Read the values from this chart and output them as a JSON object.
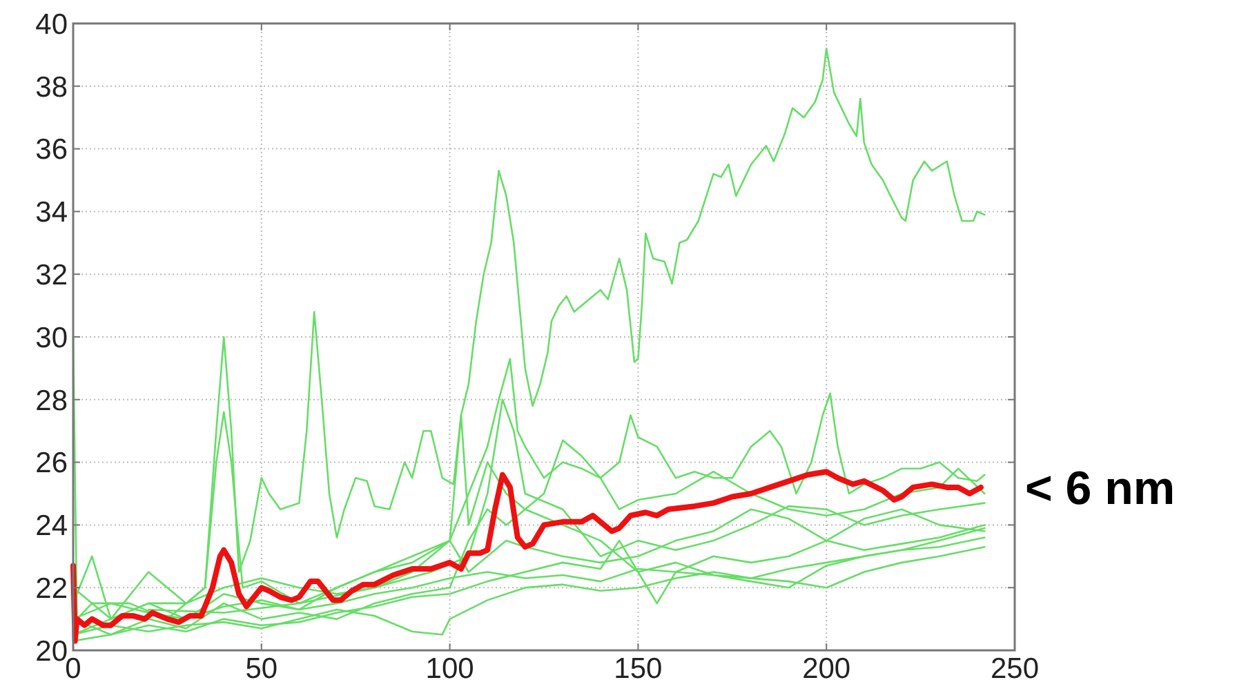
{
  "chart_data": {
    "type": "line",
    "xlim": [
      0,
      250
    ],
    "ylim": [
      20,
      40
    ],
    "xticks": [
      0,
      50,
      100,
      150,
      200,
      250
    ],
    "yticks": [
      20,
      22,
      24,
      26,
      28,
      30,
      32,
      34,
      36,
      38,
      40
    ],
    "grid": true,
    "annotations": [
      {
        "text": "< 6 nm",
        "x": 241,
        "y": 25.2
      }
    ],
    "series": [
      {
        "color": "#66dd66",
        "x": [
          0,
          10,
          20,
          30,
          35,
          38,
          40,
          42,
          44,
          47,
          50,
          52,
          55,
          60,
          62,
          64,
          66,
          68,
          70,
          72,
          75,
          78,
          80,
          84,
          88,
          90,
          93,
          95,
          98,
          101,
          103,
          105,
          107,
          109,
          111,
          113,
          115,
          117,
          120,
          122,
          124,
          126,
          127,
          129,
          131,
          133,
          137,
          140,
          142,
          145,
          147,
          149,
          150,
          151,
          152,
          154,
          157,
          159,
          161,
          163,
          166,
          170,
          172,
          174,
          176,
          180,
          184,
          186,
          189,
          191,
          194,
          197,
          199,
          200,
          201,
          202,
          204,
          206,
          208,
          209,
          210,
          212,
          215,
          217,
          220,
          221,
          223,
          226,
          228,
          232,
          234,
          236,
          239,
          240,
          242
        ],
        "values": [
          22,
          21,
          21.5,
          21.5,
          22,
          27,
          30,
          27,
          22.5,
          23.5,
          25.5,
          25,
          24.5,
          24.7,
          27,
          30.8,
          28,
          25,
          23.6,
          24.5,
          25.5,
          25.4,
          24.6,
          24.5,
          26,
          25.5,
          27,
          27,
          25.5,
          25.3,
          27.5,
          28.5,
          30.5,
          32,
          33,
          35.3,
          34.5,
          33,
          29,
          27.8,
          28.5,
          29.5,
          30.5,
          31,
          31.3,
          30.8,
          31.2,
          31.5,
          31.2,
          32.5,
          31.5,
          29.2,
          29.3,
          31,
          33.3,
          32.5,
          32.4,
          31.7,
          33,
          33.1,
          33.7,
          35.2,
          35.1,
          35.5,
          34.5,
          35.5,
          36.1,
          35.6,
          36.5,
          37.3,
          37,
          37.5,
          38.2,
          39.2,
          38.5,
          37.8,
          37.3,
          36.8,
          36.4,
          37.6,
          36.2,
          35.5,
          35,
          34.5,
          33.8,
          33.7,
          35,
          35.6,
          35.3,
          35.6,
          34.5,
          33.7,
          33.7,
          34,
          33.9
        ]
      },
      {
        "color": "#66dd66",
        "x": [
          0,
          1,
          5,
          15,
          25,
          35,
          38,
          40,
          42,
          45,
          50,
          60,
          70,
          80,
          90,
          100,
          105,
          110,
          113,
          116,
          118,
          120,
          125,
          130,
          135,
          140,
          145,
          148,
          150,
          155,
          160,
          165,
          170,
          175,
          180,
          185,
          188,
          192,
          196,
          199,
          201,
          203,
          206,
          210,
          215,
          220,
          225,
          230,
          235,
          240,
          242
        ],
        "values": [
          30,
          21,
          21.5,
          21.5,
          21,
          22,
          26,
          27.6,
          26,
          22,
          22.2,
          21.5,
          22,
          22.5,
          23,
          23.5,
          25,
          26.5,
          28,
          29.3,
          27,
          26.5,
          25.5,
          26,
          25.8,
          25.5,
          26,
          27.5,
          26.8,
          26.5,
          25.5,
          25.7,
          25.5,
          25.5,
          26.5,
          27,
          26.5,
          25,
          26,
          27.5,
          28.2,
          26.5,
          25,
          25.3,
          25.5,
          25.8,
          25.8,
          26,
          25.5,
          25.4,
          25.6
        ]
      },
      {
        "color": "#66dd66",
        "x": [
          0,
          10,
          20,
          30,
          40,
          50,
          60,
          70,
          80,
          90,
          100,
          105,
          110,
          115,
          120,
          125,
          130,
          135,
          140,
          145,
          150,
          160,
          170,
          180,
          190,
          200,
          210,
          220,
          230,
          235,
          242
        ],
        "values": [
          21,
          20.5,
          21,
          20.7,
          21.5,
          21,
          21.2,
          21,
          21.5,
          21.8,
          22,
          23.5,
          24.5,
          24,
          24.5,
          25,
          26.7,
          26.2,
          25.5,
          24.5,
          24.8,
          25,
          25.7,
          25,
          24.5,
          24.3,
          24.5,
          25,
          25.2,
          25.8,
          25
        ]
      },
      {
        "color": "#66dd66",
        "x": [
          0,
          10,
          20,
          30,
          40,
          50,
          60,
          70,
          80,
          90,
          100,
          105,
          110,
          115,
          120,
          130,
          140,
          150,
          160,
          170,
          180,
          190,
          200,
          210,
          220,
          230,
          242
        ],
        "values": [
          20.5,
          21,
          21.5,
          21,
          21.8,
          21.5,
          21.3,
          22,
          22.5,
          22.8,
          23.5,
          22.5,
          23,
          23.5,
          23.3,
          23,
          22.8,
          23,
          23.5,
          23.8,
          24.5,
          24.2,
          23.5,
          24.2,
          24.5,
          24,
          23.8
        ]
      },
      {
        "color": "#66dd66",
        "x": [
          0,
          10,
          20,
          30,
          40,
          50,
          60,
          70,
          80,
          90,
          100,
          110,
          120,
          130,
          140,
          145,
          150,
          160,
          170,
          180,
          190,
          200,
          210,
          220,
          230,
          242
        ],
        "values": [
          20.3,
          20.5,
          20.8,
          20.6,
          21,
          20.8,
          20.9,
          21.2,
          21.4,
          21.7,
          21.8,
          22.2,
          22.5,
          22.8,
          22.6,
          23.5,
          22.5,
          22.8,
          22.4,
          22.3,
          22.6,
          22.8,
          23,
          23.2,
          23.5,
          23.9
        ]
      },
      {
        "color": "#66dd66",
        "x": [
          0,
          10,
          20,
          30,
          40,
          50,
          60,
          70,
          80,
          90,
          98,
          100,
          110,
          120,
          130,
          140,
          150,
          160,
          170,
          180,
          190,
          200,
          210,
          220,
          230,
          242
        ],
        "values": [
          20.5,
          20.8,
          20.6,
          20.8,
          20.9,
          20.7,
          21,
          21.3,
          21.1,
          20.6,
          20.5,
          21,
          21.6,
          22,
          22.1,
          21.9,
          22,
          22.3,
          22.5,
          22.3,
          22.2,
          22,
          22.5,
          22.8,
          23,
          23.3
        ]
      },
      {
        "color": "#66dd66",
        "x": [
          0,
          5,
          10,
          20,
          30,
          40,
          50,
          60,
          70,
          80,
          90,
          100,
          103,
          105,
          110,
          115,
          120,
          130,
          140,
          150,
          155,
          160,
          170,
          180,
          190,
          200,
          210,
          220,
          230,
          242
        ],
        "values": [
          21.5,
          23,
          21,
          22.5,
          21.5,
          22,
          22.3,
          22,
          21.8,
          22,
          22.5,
          23.5,
          27.5,
          24,
          26,
          25,
          24.5,
          24,
          23.5,
          22.5,
          21.5,
          22.5,
          23,
          22.8,
          23,
          23.5,
          23.2,
          23.4,
          23.6,
          24
        ]
      },
      {
        "color": "#66dd66",
        "x": [
          0,
          10,
          20,
          30,
          40,
          50,
          60,
          70,
          80,
          90,
          100,
          110,
          120,
          130,
          140,
          150,
          160,
          170,
          180,
          190,
          200,
          210,
          220,
          230,
          242
        ],
        "values": [
          21,
          21.5,
          21.2,
          21,
          21.4,
          21.6,
          21.3,
          21.5,
          21.8,
          22,
          22.3,
          22.5,
          22.3,
          22.4,
          22.2,
          22.6,
          22.5,
          22.4,
          22.2,
          22,
          22.7,
          23,
          23.2,
          23.3,
          23.6
        ]
      },
      {
        "color": "#66dd66",
        "x": [
          20,
          40,
          60,
          80,
          95,
          105,
          110,
          114,
          117,
          120,
          130,
          140,
          150,
          160,
          170,
          180,
          190,
          200,
          210,
          220,
          230,
          242
        ],
        "values": [
          21.3,
          21.2,
          21.5,
          22,
          22.5,
          23,
          25,
          28,
          27,
          25,
          24.5,
          23,
          23.5,
          23.2,
          23.5,
          24,
          24.6,
          24.5,
          24,
          24.3,
          24.5,
          24.7
        ]
      },
      {
        "color": "#ee1111",
        "x": [
          0,
          0.5,
          1,
          3,
          5,
          8,
          10,
          13,
          16,
          19,
          21,
          25,
          28,
          31,
          34,
          37,
          39,
          40,
          42,
          44,
          46,
          48,
          50,
          52,
          55,
          58,
          60,
          63,
          65,
          67,
          69,
          71,
          74,
          77,
          80,
          85,
          90,
          95,
          100,
          103,
          105,
          108,
          110,
          112,
          114,
          116,
          118,
          120,
          122,
          125,
          130,
          135,
          138,
          140,
          143,
          145,
          148,
          152,
          155,
          158,
          165,
          170,
          175,
          180,
          185,
          190,
          195,
          200,
          203,
          207,
          210,
          215,
          218,
          220,
          223,
          228,
          232,
          235,
          238,
          241
        ],
        "values": [
          22.7,
          20.3,
          21,
          20.8,
          21,
          20.8,
          20.8,
          21.1,
          21.1,
          21,
          21.2,
          21,
          20.9,
          21.1,
          21.1,
          22,
          23,
          23.2,
          22.8,
          21.8,
          21.4,
          21.7,
          22,
          21.9,
          21.7,
          21.6,
          21.7,
          22.2,
          22.2,
          21.9,
          21.6,
          21.6,
          21.9,
          22.1,
          22.1,
          22.4,
          22.6,
          22.6,
          22.8,
          22.6,
          23.1,
          23.1,
          23.2,
          24.5,
          25.6,
          25.2,
          23.6,
          23.3,
          23.4,
          24,
          24.1,
          24.1,
          24.3,
          24.1,
          23.8,
          23.9,
          24.3,
          24.4,
          24.3,
          24.5,
          24.6,
          24.7,
          24.9,
          25,
          25.2,
          25.4,
          25.6,
          25.7,
          25.5,
          25.3,
          25.4,
          25.1,
          24.8,
          24.9,
          25.2,
          25.3,
          25.2,
          25.2,
          25,
          25.2
        ]
      }
    ]
  }
}
